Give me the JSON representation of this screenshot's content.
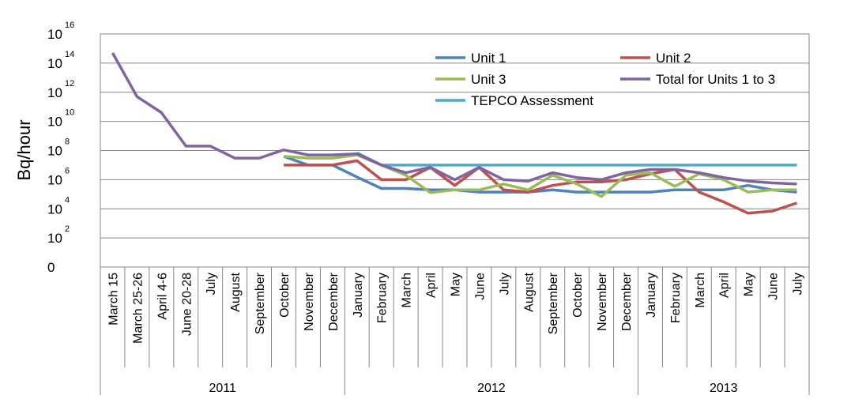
{
  "chart_data": {
    "type": "line",
    "ylabel": "Bq/hour",
    "y_scale": "log",
    "ylim": [
      1,
      1e+16
    ],
    "y_ticks": [
      {
        "base": "0",
        "exp": ""
      },
      {
        "base": "10",
        "exp": "2"
      },
      {
        "base": "10",
        "exp": "4"
      },
      {
        "base": "10",
        "exp": "6"
      },
      {
        "base": "10",
        "exp": "8"
      },
      {
        "base": "10",
        "exp": "10"
      },
      {
        "base": "10",
        "exp": "12"
      },
      {
        "base": "10",
        "exp": "14"
      },
      {
        "base": "10",
        "exp": "16"
      }
    ],
    "grid": "horizontal",
    "legend_position": "top-right",
    "categories": [
      "March 15",
      "March 25-26",
      "April 4-6",
      "June 20-28",
      "July",
      "August",
      "September",
      "October",
      "November",
      "December",
      "January",
      "February",
      "March",
      "April",
      "May",
      "June",
      "July",
      "August",
      "September",
      "October",
      "November",
      "December",
      "January",
      "February",
      "March",
      "April",
      "May",
      "June",
      "July"
    ],
    "year_groups": [
      {
        "label": "2011",
        "start": 0,
        "end": 9
      },
      {
        "label": "2012",
        "start": 10,
        "end": 21
      },
      {
        "label": "2013",
        "start": 22,
        "end": 28
      }
    ],
    "series": [
      {
        "name": "Unit 1",
        "color": "#4F81BD",
        "values": [
          null,
          null,
          null,
          null,
          null,
          null,
          null,
          40000000.0,
          10000000.0,
          10000000.0,
          1500000.0,
          250000.0,
          250000.0,
          200000.0,
          200000.0,
          140000.0,
          140000.0,
          140000.0,
          200000.0,
          140000.0,
          140000.0,
          140000.0,
          140000.0,
          200000.0,
          200000.0,
          200000.0,
          400000.0,
          200000.0,
          140000.0
        ]
      },
      {
        "name": "Unit 2",
        "color": "#C0504D",
        "values": [
          null,
          null,
          null,
          null,
          null,
          null,
          null,
          10000000.0,
          10000000.0,
          10000000.0,
          20000000.0,
          1000000.0,
          1000000.0,
          7000000.0,
          400000.0,
          7000000.0,
          200000.0,
          140000.0,
          400000.0,
          700000.0,
          700000.0,
          1000000.0,
          2500000.0,
          5000000.0,
          140000.0,
          30000.0,
          5000.0,
          7000.0,
          25000.0
        ]
      },
      {
        "name": "Unit 3",
        "color": "#9BBB59",
        "values": [
          null,
          null,
          null,
          null,
          null,
          null,
          null,
          40000000.0,
          30000000.0,
          30000000.0,
          50000000.0,
          10000000.0,
          2000000.0,
          130000.0,
          200000.0,
          200000.0,
          500000.0,
          200000.0,
          2000000.0,
          500000.0,
          70000.0,
          2000000.0,
          3000000.0,
          350000.0,
          2500000.0,
          1000000.0,
          140000.0,
          200000.0,
          200000.0
        ]
      },
      {
        "name": "Total for Units 1 to 3",
        "color": "#8064A2",
        "values": [
          500000000000000.0,
          500000000000.0,
          40000000000.0,
          200000000.0,
          200000000.0,
          30000000.0,
          30000000.0,
          110000000.0,
          50000000.0,
          50000000.0,
          60000000.0,
          10000000.0,
          3000000.0,
          7000000.0,
          1000000.0,
          7000000.0,
          1000000.0,
          800000.0,
          3000000.0,
          1400000.0,
          1000000.0,
          3000000.0,
          5000000.0,
          5000000.0,
          3000000.0,
          1400000.0,
          800000.0,
          600000.0,
          500000.0
        ]
      },
      {
        "name": "TEPCO Assessment",
        "color": "#4BACC6",
        "values": [
          null,
          null,
          null,
          null,
          null,
          null,
          null,
          null,
          null,
          null,
          70000000.0,
          10000000.0,
          10000000.0,
          10000000.0,
          10000000.0,
          10000000.0,
          10000000.0,
          10000000.0,
          10000000.0,
          10000000.0,
          10000000.0,
          10000000.0,
          10000000.0,
          10000000.0,
          10000000.0,
          10000000.0,
          10000000.0,
          10000000.0,
          10000000.0
        ]
      }
    ]
  }
}
